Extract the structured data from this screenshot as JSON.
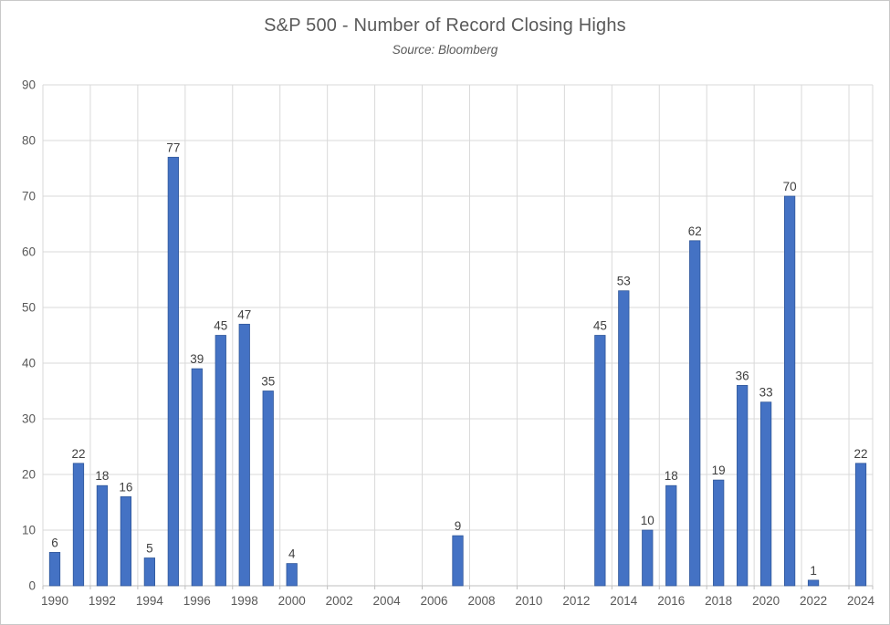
{
  "chart_data": {
    "type": "bar",
    "title": "S&P 500 - Number of Record Closing Highs",
    "subtitle": "Source: Bloomberg",
    "categories": [
      1990,
      1991,
      1992,
      1993,
      1994,
      1995,
      1996,
      1997,
      1998,
      1999,
      2000,
      2001,
      2002,
      2003,
      2004,
      2005,
      2006,
      2007,
      2008,
      2009,
      2010,
      2011,
      2012,
      2013,
      2014,
      2015,
      2016,
      2017,
      2018,
      2019,
      2020,
      2021,
      2022,
      2023,
      2024
    ],
    "values": [
      6,
      22,
      18,
      16,
      5,
      77,
      39,
      45,
      47,
      35,
      4,
      0,
      0,
      0,
      0,
      0,
      0,
      9,
      0,
      0,
      0,
      0,
      0,
      45,
      53,
      10,
      18,
      62,
      19,
      36,
      33,
      70,
      1,
      0,
      22
    ],
    "xlabel": "",
    "ylabel": "",
    "ylim": [
      0,
      90
    ],
    "ytick_labels": [
      0,
      10,
      20,
      30,
      40,
      50,
      60,
      70,
      80,
      90
    ],
    "xtick_labels": [
      "1990",
      "1992",
      "1994",
      "1996",
      "1998",
      "2000",
      "2002",
      "2004",
      "2006",
      "2008",
      "2010",
      "2012",
      "2014",
      "2016",
      "2018",
      "2020",
      "2022",
      "2024"
    ],
    "xtick_interval": 2,
    "grid": true,
    "legend": "none",
    "show_data_labels": true,
    "colors": {
      "bar_fill": "#4472C4",
      "bar_edge": "#2E5597",
      "gridline": "#D9D9D9",
      "axis_line": "#BFBFBF",
      "tick_label": "#595959",
      "data_label": "#404040",
      "title": "#595959"
    }
  }
}
